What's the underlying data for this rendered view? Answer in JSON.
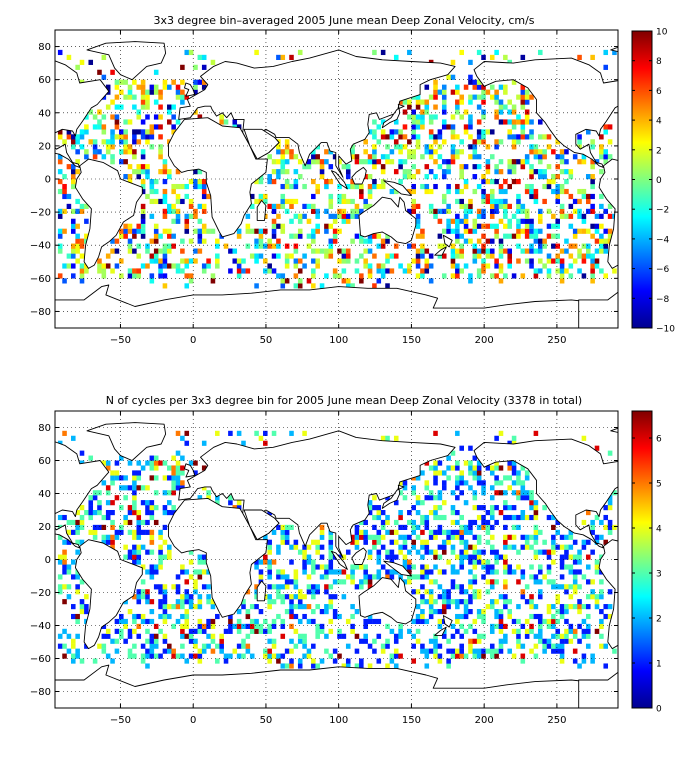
{
  "chart_data": [
    {
      "type": "heatmap",
      "title": "3x3 degree bin–averaged 2005 June mean Deep Zonal Velocity, cm/s",
      "xlabel": "",
      "ylabel": "",
      "xlim": [
        -95,
        292
      ],
      "ylim": [
        -90,
        90
      ],
      "xticks": [
        -50,
        0,
        50,
        100,
        150,
        200,
        250
      ],
      "yticks": [
        -80,
        -60,
        -40,
        -20,
        0,
        20,
        40,
        60,
        80
      ],
      "grid": true,
      "grid_style": "dotted",
      "bin_size_deg": 3,
      "colormap": "jet",
      "colorbar": {
        "min": -10,
        "max": 10,
        "ticks": [
          10,
          8,
          6,
          4,
          2,
          0,
          -2,
          -4,
          -6,
          -8,
          -10
        ],
        "placement": "right"
      },
      "seed": 11
    },
    {
      "type": "heatmap",
      "title": "N of cycles per 3x3 degree bin for 2005 June mean Deep Zonal Velocity (3378 in total)",
      "xlabel": "",
      "ylabel": "",
      "xlim": [
        -95,
        292
      ],
      "ylim": [
        -90,
        90
      ],
      "xticks": [
        -50,
        0,
        50,
        100,
        150,
        200,
        250
      ],
      "yticks": [
        -80,
        -60,
        -40,
        -20,
        0,
        20,
        40,
        60,
        80
      ],
      "grid": true,
      "grid_style": "dotted",
      "bin_size_deg": 3,
      "colormap": "jet",
      "colorbar": {
        "min": 0,
        "max": 6.6,
        "ticks": [
          6,
          5,
          4,
          3,
          2,
          1,
          0
        ],
        "placement": "right"
      },
      "total_cycles": 3378,
      "seed": 23
    }
  ],
  "colors": {
    "jet": [
      "#00008f",
      "#0000ff",
      "#00ffff",
      "#ffff00",
      "#ff0000",
      "#800000"
    ],
    "coastline": "#000000",
    "background": "#ffffff"
  }
}
